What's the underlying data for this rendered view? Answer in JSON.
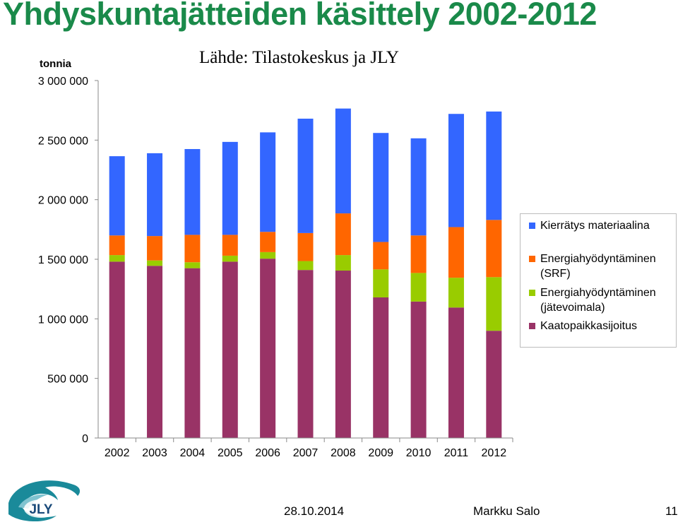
{
  "slide": {
    "title": "Yhdyskuntajätteiden käsittely 2002-2012",
    "source": "Lähde: Tilastokeskus ja JLY",
    "date": "28.10.2014",
    "author": "Markku Salo",
    "page_number": "11",
    "logo_text": "JLY",
    "title_color": "#1a8a4a"
  },
  "chart_data": {
    "type": "bar",
    "stacked": true,
    "ylabel": "tonnia",
    "ylim": [
      0,
      3000000
    ],
    "yticks": [
      0,
      500000,
      1000000,
      1500000,
      2000000,
      2500000,
      3000000
    ],
    "ytick_labels": [
      "0",
      "500 000",
      "1 000 000",
      "1 500 000",
      "2 000 000",
      "2 500 000",
      "3 000 000"
    ],
    "grid": false,
    "legend_position": "right",
    "categories": [
      "2002",
      "2003",
      "2004",
      "2005",
      "2006",
      "2007",
      "2008",
      "2009",
      "2010",
      "2011",
      "2012"
    ],
    "series": [
      {
        "name": "Kaatopaikkasijoitus",
        "color": "#993366",
        "values": [
          1480000,
          1445000,
          1425000,
          1480000,
          1505000,
          1410000,
          1405000,
          1180000,
          1145000,
          1095000,
          900000
        ]
      },
      {
        "name": "Energiahyödyntäminen (jätevoimala)",
        "color": "#99cc00",
        "values": [
          55000,
          45000,
          50000,
          50000,
          55000,
          75000,
          130000,
          235000,
          240000,
          250000,
          450000
        ]
      },
      {
        "name": "Energiahyödyntäminen (SRF)",
        "color": "#ff6600",
        "values": [
          165000,
          205000,
          230000,
          175000,
          170000,
          235000,
          350000,
          230000,
          315000,
          425000,
          480000
        ]
      },
      {
        "name": "Kierrätys materiaalina",
        "color": "#3366ff",
        "values": [
          665000,
          695000,
          720000,
          780000,
          835000,
          960000,
          880000,
          915000,
          815000,
          950000,
          910000
        ]
      }
    ],
    "legend_order": [
      {
        "label": "Kierrätys materiaalina",
        "color": "#3366ff"
      },
      {
        "label": "Energiahyödyntäminen (SRF)",
        "color": "#ff6600"
      },
      {
        "label": "Energiahyödyntäminen (jätevoimala)",
        "color": "#99cc00"
      },
      {
        "label": "Kaatopaikkasijoitus",
        "color": "#993366"
      }
    ]
  }
}
